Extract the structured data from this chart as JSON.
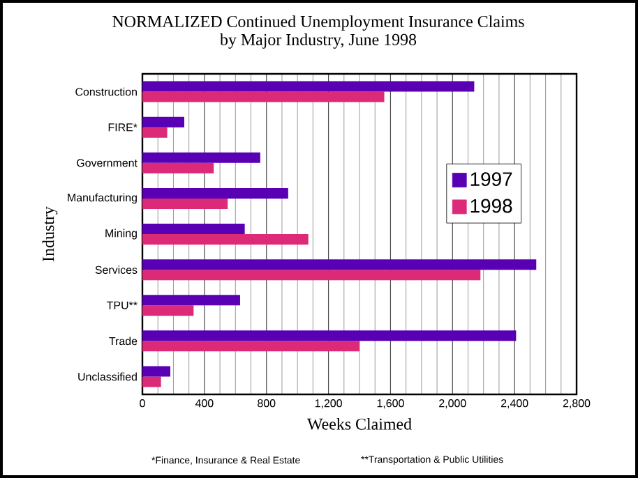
{
  "chart_data": {
    "type": "bar",
    "orientation": "horizontal",
    "title": "NORMALIZED Continued Unemployment Insurance Claims by Major Industry, June 1998",
    "xlabel": "Weeks Claimed",
    "ylabel": "Industry",
    "categories": [
      "Construction",
      "FIRE*",
      "Government",
      "Manufacturing",
      "Mining",
      "Services",
      "TPU**",
      "Trade",
      "Unclassified"
    ],
    "series": [
      {
        "name": "1997",
        "color": "#5a00b4",
        "values": [
          2140,
          270,
          760,
          940,
          660,
          2540,
          630,
          2410,
          180
        ]
      },
      {
        "name": "1998",
        "color": "#dc2a78",
        "values": [
          1560,
          160,
          460,
          550,
          1070,
          2180,
          330,
          1400,
          120
        ]
      }
    ],
    "xlim": [
      0,
      2800
    ],
    "xticks": [
      {
        "value": 0,
        "label": "0"
      },
      {
        "value": 400,
        "label": "400"
      },
      {
        "value": 800,
        "label": "800"
      },
      {
        "value": 1200,
        "label": "1,200"
      },
      {
        "value": 1600,
        "label": "1,600"
      },
      {
        "value": 2000,
        "label": "2,000"
      },
      {
        "value": 2400,
        "label": "2,400"
      },
      {
        "value": 2800,
        "label": "2,800"
      }
    ],
    "grid": "x",
    "legend": "right",
    "annotations": [
      "*Finance, Insurance & Real Estate",
      "**Transportation & Public Utilities"
    ]
  }
}
